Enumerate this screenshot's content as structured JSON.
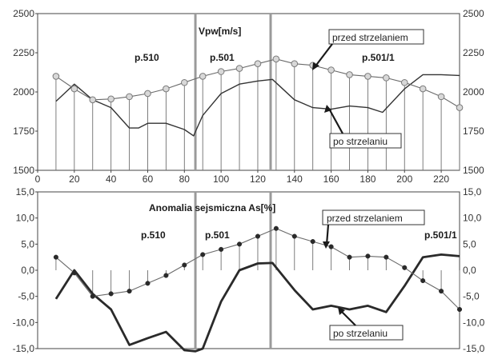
{
  "chart_data": [
    {
      "type": "line",
      "title": "Vpw[m/s]",
      "x": [
        10,
        20,
        30,
        40,
        50,
        60,
        70,
        80,
        90,
        100,
        110,
        120,
        130,
        140,
        150,
        160,
        170,
        180,
        190,
        200,
        210,
        220,
        230
      ],
      "xlim": [
        0,
        230
      ],
      "xticks": [
        0,
        20,
        40,
        60,
        80,
        100,
        120,
        140,
        160,
        180,
        200,
        220
      ],
      "ylim": [
        1500,
        2500
      ],
      "yticks": [
        1500,
        1750,
        2000,
        2250,
        2500
      ],
      "grid": false,
      "vlines": [
        86,
        127
      ],
      "region_labels": [
        "p.510",
        "p.501",
        "p.501/1"
      ],
      "series": [
        {
          "name": "przed strzelaniem",
          "values": [
            2100,
            2020,
            1950,
            1955,
            1970,
            1990,
            2020,
            2060,
            2100,
            2130,
            2150,
            2180,
            2210,
            2180,
            2170,
            2140,
            2110,
            2100,
            2090,
            2060,
            2020,
            1970,
            1900
          ]
        },
        {
          "name": "po strzelaniu",
          "x": [
            10,
            20,
            30,
            40,
            50,
            55,
            60,
            70,
            80,
            85,
            90,
            100,
            110,
            120,
            128,
            140,
            150,
            160,
            170,
            180,
            188,
            200,
            210,
            220,
            230
          ],
          "values": [
            1940,
            2050,
            1950,
            1900,
            1770,
            1770,
            1800,
            1800,
            1760,
            1720,
            1850,
            1990,
            2050,
            2070,
            2080,
            1950,
            1900,
            1890,
            1910,
            1900,
            1870,
            2020,
            2110,
            2110,
            2105
          ]
        }
      ]
    },
    {
      "type": "line",
      "title": "Anomalia sejsmiczna As[%]",
      "x": [
        10,
        20,
        30,
        40,
        50,
        60,
        70,
        80,
        90,
        100,
        110,
        120,
        130,
        140,
        150,
        160,
        170,
        180,
        190,
        200,
        210,
        220,
        230
      ],
      "xlim": [
        0,
        230
      ],
      "ylim": [
        -15,
        15
      ],
      "yticks": [
        -15,
        -10,
        -5,
        0,
        5,
        10,
        15
      ],
      "grid": false,
      "vlines": [
        86,
        127
      ],
      "region_labels": [
        "p.510",
        "p.501",
        "p.501/1"
      ],
      "series": [
        {
          "name": "przed strzelaniem",
          "values": [
            2.5,
            -0.5,
            -5.0,
            -4.5,
            -4.0,
            -2.5,
            -1.0,
            1.0,
            3.0,
            4.0,
            5.0,
            6.5,
            8.0,
            6.5,
            5.5,
            4.5,
            2.5,
            2.7,
            2.5,
            0.5,
            -2.0,
            -4.0,
            -7.5
          ]
        },
        {
          "name": "po strzelaniu",
          "x": [
            10,
            20,
            30,
            40,
            50,
            60,
            70,
            80,
            86,
            90,
            100,
            110,
            120,
            128,
            140,
            150,
            160,
            170,
            180,
            190,
            200,
            210,
            220,
            230
          ],
          "values": [
            -5.5,
            0.0,
            -4.5,
            -7.5,
            -14.3,
            -13.0,
            -11.8,
            -15.3,
            -15.5,
            -15.0,
            -6.0,
            0.0,
            1.3,
            1.4,
            -3.8,
            -7.5,
            -6.8,
            -7.5,
            -6.8,
            -8.0,
            -3.0,
            2.5,
            3.0,
            2.7
          ]
        }
      ]
    }
  ],
  "annotations": {
    "top_before": "przed strzelaniem",
    "top_after": "po strzelaniu",
    "bottom_before": "przed strzelaniem",
    "bottom_after": "po strzelaniu"
  },
  "labels": {
    "region_510": "p.510",
    "region_501": "p.501",
    "region_5011": "p.501/1"
  },
  "colors": {
    "before_line": "#6a6a6a",
    "marker_fill": "#d8d8d8",
    "after_line": "#333333",
    "after_line_bottom": "#2a2a2a",
    "vline": "#9a9a9a",
    "axis": "#444444"
  }
}
